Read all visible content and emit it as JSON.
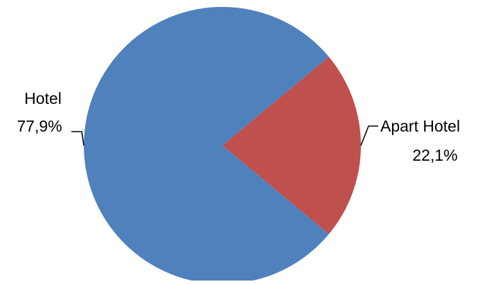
{
  "chart_data": {
    "type": "pie",
    "title": "",
    "slices": [
      {
        "label": "Hotel",
        "value": 77.9,
        "display_value": "77,9%",
        "color": "#4F81BD"
      },
      {
        "label": "Apart Hotel",
        "value": 22.1,
        "display_value": "22,1%",
        "color": "#C0504D"
      }
    ],
    "legend": "none",
    "start_angle_deg": 0,
    "direction": "clockwise"
  }
}
